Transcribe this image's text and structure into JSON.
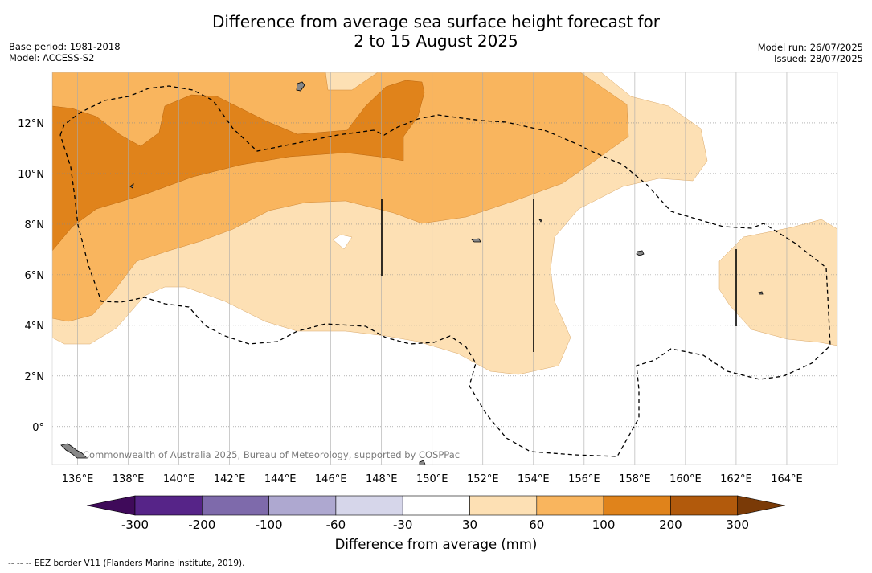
{
  "header": {
    "title_line1": "Difference from average sea surface height forecast for",
    "title_line2": "2 to 15 August 2025",
    "base_period": "Base period: 1981-2018",
    "model": "Model: ACCESS-S2",
    "model_run": "Model run: 26/07/2025",
    "issued": "Issued: 28/07/2025"
  },
  "map": {
    "credit": "Commonwealth of Australia 2025, Bureau of Meteorology, supported by COSPPac",
    "lon_labels": [
      "136°E",
      "138°E",
      "140°E",
      "142°E",
      "144°E",
      "146°E",
      "148°E",
      "150°E",
      "152°E",
      "154°E",
      "156°E",
      "158°E",
      "160°E",
      "162°E",
      "164°E"
    ],
    "lat_labels": [
      "12°N",
      "10°N",
      "8°N",
      "6°N",
      "4°N",
      "2°N",
      "0°"
    ]
  },
  "colorbar": {
    "title": "Difference from average (mm)",
    "tick_labels": [
      "-300",
      "-200",
      "-100",
      "-60",
      "-30",
      "30",
      "60",
      "100",
      "200",
      "300"
    ],
    "colors": [
      "#3f0a5a",
      "#562488",
      "#7e6aab",
      "#aea8d0",
      "#d6d6ea",
      "#ffffff",
      "#fde0b4",
      "#f9b55e",
      "#e0831b",
      "#b25a0c",
      "#7a3a07"
    ]
  },
  "footnote": "--  --  -- EEZ border V11 (Flanders Marine Institute, 2019).",
  "chart_data": {
    "type": "heatmap",
    "title": "Difference from average sea surface height forecast for 2 to 15 August 2025",
    "xlabel": "",
    "ylabel": "",
    "xlim": [
      135,
      166
    ],
    "ylim": [
      -1.5,
      14
    ],
    "x_ticks": [
      136,
      138,
      140,
      142,
      144,
      146,
      148,
      150,
      152,
      154,
      156,
      158,
      160,
      162,
      164
    ],
    "y_ticks": [
      12,
      10,
      8,
      6,
      4,
      2,
      0
    ],
    "grid": true,
    "levels_mm": [
      -300,
      -200,
      -100,
      -60,
      -30,
      30,
      60,
      100,
      200,
      300
    ],
    "colorbar_label": "Difference from average (mm)",
    "regions": [
      {
        "level": "30-60 mm",
        "area": "broad band roughly 135-157°E from 2.5°N to 14°N, plus patch 161.5-166°E from 3°N to 8°N"
      },
      {
        "level": "60-100 mm",
        "area": "about 135-157°E between 3.5°N and 14°N"
      },
      {
        "level": "100-200 mm",
        "area": "about 135-150°E between 7°N and 13.5°N"
      }
    ]
  }
}
